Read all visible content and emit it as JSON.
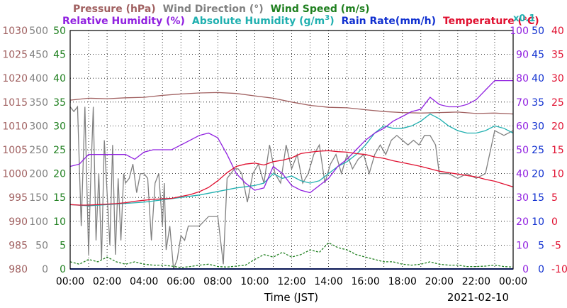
{
  "chart_data": {
    "type": "line",
    "date": "2021-02-10",
    "xlabel": "Time (JST)",
    "x_ticks": [
      "00:00",
      "02:00",
      "04:00",
      "06:00",
      "08:00",
      "10:00",
      "12:00",
      "14:00",
      "16:00",
      "18:00",
      "20:00",
      "22:00",
      "00:00"
    ],
    "xlim": [
      0,
      24
    ],
    "grid": true,
    "legend_row1": [
      {
        "label": "Pressure (hPa)",
        "color": "#a06060"
      },
      {
        "label": "Wind Direction (°)",
        "color": "#808080"
      },
      {
        "label": "Wind Speed (m/s)",
        "color": "#208020"
      }
    ],
    "legend_row2": [
      {
        "label": "Relative Humidity (%)",
        "color": "#9020e0"
      },
      {
        "label": "Absolute Humidity (g/m",
        "sup": "3",
        "close": ")",
        "color": "#20b0b0"
      },
      {
        "label": "Rain Rate(mm/h)",
        "color": "#1030d0"
      },
      {
        "label": "Temperature (°C)",
        "color": "#e01030"
      }
    ],
    "abs_humidity_scale_note": "x0.1",
    "axes": {
      "pressure": {
        "min": 980,
        "max": 1030,
        "ticks": [
          "1030",
          "1025",
          "1020",
          "1015",
          "1010",
          "1005",
          "1000",
          "995",
          "990",
          "985",
          "980"
        ],
        "color": "#a06060"
      },
      "wind_direction": {
        "min": 0,
        "max": 500,
        "ticks": [
          "500",
          "450",
          "400",
          "350",
          "300",
          "250",
          "200",
          "150",
          "100",
          "50",
          "0"
        ],
        "color": "#808080"
      },
      "wind_speed": {
        "min": 0,
        "max": 50,
        "ticks": [
          "50",
          "45",
          "40",
          "35",
          "30",
          "25",
          "20",
          "15",
          "10",
          "5",
          "0"
        ],
        "color": "#208020"
      },
      "relative_humidity": {
        "min": 0,
        "max": 100,
        "ticks": [
          "100",
          "90",
          "80",
          "70",
          "60",
          "50",
          "40",
          "30",
          "20",
          "10",
          "0"
        ],
        "color": "#9020e0"
      },
      "rain_rate": {
        "min": 0,
        "max": 50,
        "ticks": [
          "50",
          "45",
          "40",
          "35",
          "30",
          "25",
          "20",
          "15",
          "10",
          "5",
          "0"
        ],
        "color": "#1030d0"
      },
      "temperature": {
        "min": -10,
        "max": 40,
        "ticks": [
          "40",
          "35",
          "30",
          "25",
          "20",
          "15",
          "10",
          "5",
          "0",
          "-5",
          "-10"
        ],
        "color": "#e01030"
      }
    },
    "series": [
      {
        "name": "Pressure (hPa)",
        "axis": "pressure",
        "color": "#a06060",
        "x": [
          0,
          1,
          2,
          3,
          4,
          5,
          6,
          7,
          8,
          9,
          10,
          11,
          12,
          13,
          14,
          15,
          16,
          17,
          18,
          19,
          20,
          21,
          22,
          23,
          24
        ],
        "y": [
          1015.4,
          1015.8,
          1015.7,
          1015.9,
          1016.0,
          1016.4,
          1016.7,
          1016.9,
          1017.0,
          1016.8,
          1016.3,
          1015.8,
          1015.0,
          1014.3,
          1013.9,
          1013.8,
          1013.4,
          1013.0,
          1012.8,
          1012.7,
          1012.8,
          1012.9,
          1012.6,
          1012.7,
          1012.5
        ]
      },
      {
        "name": "Relative Humidity (%)",
        "axis": "relative_humidity",
        "color": "#9020e0",
        "x": [
          0,
          0.5,
          1,
          1.5,
          2,
          2.5,
          3,
          3.5,
          4,
          4.5,
          5,
          5.5,
          6,
          6.5,
          7,
          7.5,
          8,
          8.5,
          9,
          9.5,
          10,
          10.5,
          11,
          11.5,
          12,
          12.5,
          13,
          13.5,
          14,
          14.5,
          15,
          15.5,
          16,
          16.5,
          17,
          17.5,
          18,
          18.5,
          19,
          19.5,
          20,
          20.5,
          21,
          21.5,
          22,
          22.5,
          23,
          23.5,
          24
        ],
        "y": [
          43,
          44,
          48,
          48,
          48,
          48,
          48,
          46,
          49,
          50,
          50,
          50,
          52,
          54,
          56,
          57,
          55,
          48,
          40,
          36,
          33,
          34,
          43,
          40,
          35,
          33,
          32,
          35,
          38,
          43,
          46,
          50,
          54,
          57,
          59,
          62,
          64,
          66,
          67,
          72,
          69,
          68,
          68,
          69,
          71,
          75,
          79,
          79,
          79
        ]
      },
      {
        "name": "Absolute Humidity (g/m3)",
        "axis": "relative_humidity",
        "color": "#20b0b0",
        "x": [
          0,
          1,
          2,
          3,
          4,
          5,
          6,
          7,
          8,
          9,
          10,
          10.5,
          11,
          11.5,
          12,
          12.5,
          13,
          13.5,
          14,
          14.5,
          15,
          15.5,
          16,
          16.5,
          17,
          17.5,
          18,
          18.5,
          19,
          19.5,
          20,
          20.5,
          21,
          21.5,
          22,
          22.5,
          23,
          23.5,
          24
        ],
        "y": [
          27,
          26.5,
          27,
          27.5,
          28,
          29,
          30,
          31,
          32.5,
          34,
          35,
          36,
          40,
          38,
          39,
          37,
          36,
          37,
          40,
          43,
          45,
          48,
          52,
          57,
          60,
          59,
          59,
          60,
          62,
          65,
          63,
          60,
          58,
          57,
          57,
          58,
          60,
          59,
          57
        ]
      },
      {
        "name": "Temperature (°C)",
        "axis": "temperature",
        "color": "#e01030",
        "x": [
          0,
          0.5,
          1,
          1.5,
          2,
          2.5,
          3,
          3.5,
          4,
          4.5,
          5,
          5.5,
          6,
          6.5,
          7,
          7.5,
          8,
          8.5,
          9,
          9.5,
          10,
          10.5,
          11,
          11.5,
          12,
          12.5,
          13,
          13.5,
          14,
          14.5,
          15,
          15.5,
          16,
          16.5,
          17,
          17.5,
          18,
          18.5,
          19,
          19.5,
          20,
          20.5,
          21,
          21.5,
          22,
          22.5,
          23,
          23.5,
          24
        ],
        "y": [
          3.5,
          3.4,
          3.4,
          3.5,
          3.6,
          3.7,
          3.9,
          4.2,
          4.4,
          4.6,
          4.7,
          4.8,
          5.2,
          5.6,
          6.2,
          7.1,
          8.5,
          10.2,
          11.5,
          12.0,
          12.2,
          11.8,
          12.5,
          12.8,
          13.3,
          14.2,
          14.5,
          14.7,
          14.8,
          14.6,
          14.5,
          14.2,
          14.0,
          13.5,
          13.2,
          12.7,
          12.3,
          11.9,
          11.5,
          11.0,
          10.5,
          10.2,
          9.9,
          9.6,
          9.3,
          8.8,
          8.4,
          7.8,
          7.2
        ]
      },
      {
        "name": "Wind Direction (°)",
        "axis": "wind_direction",
        "color": "#808080",
        "x": [
          0,
          0.2,
          0.4,
          0.6,
          0.8,
          1.0,
          1.1,
          1.25,
          1.4,
          1.55,
          1.7,
          1.85,
          2.0,
          2.15,
          2.3,
          2.45,
          2.6,
          2.75,
          2.9,
          3.0,
          3.2,
          3.4,
          3.6,
          3.8,
          4.0,
          4.2,
          4.4,
          4.6,
          4.8,
          5.0,
          5.1,
          5.2,
          5.4,
          5.6,
          5.8,
          6.0,
          6.2,
          6.4,
          6.6,
          6.8,
          7.0,
          7.5,
          8.0,
          8.3,
          8.5,
          8.7,
          8.9,
          9.1,
          9.3,
          9.6,
          9.9,
          10.2,
          10.5,
          10.8,
          11.1,
          11.4,
          11.7,
          12.0,
          12.3,
          12.6,
          12.9,
          13.2,
          13.5,
          13.8,
          14.1,
          14.4,
          14.7,
          15.0,
          15.3,
          15.6,
          15.9,
          16.2,
          16.5,
          16.8,
          17.1,
          17.4,
          17.7,
          18.0,
          18.3,
          18.6,
          18.9,
          19.2,
          19.5,
          19.8,
          20.0,
          20.5,
          21.0,
          21.5,
          22.0,
          22.5,
          23.0,
          23.5,
          24.0
        ],
        "y": [
          340,
          330,
          340,
          90,
          340,
          30,
          170,
          340,
          60,
          200,
          20,
          270,
          160,
          50,
          260,
          30,
          190,
          60,
          200,
          180,
          190,
          220,
          160,
          200,
          200,
          190,
          60,
          180,
          200,
          90,
          180,
          40,
          90,
          0,
          20,
          70,
          60,
          90,
          90,
          90,
          90,
          110,
          110,
          10,
          190,
          200,
          210,
          210,
          200,
          140,
          200,
          220,
          180,
          260,
          200,
          180,
          260,
          210,
          240,
          180,
          200,
          240,
          260,
          180,
          220,
          240,
          200,
          240,
          210,
          230,
          240,
          200,
          240,
          260,
          240,
          270,
          280,
          270,
          260,
          270,
          260,
          280,
          280,
          260,
          200,
          200,
          190,
          200,
          190,
          200,
          290,
          280,
          290
        ]
      },
      {
        "name": "Wind Speed (m/s)",
        "axis": "wind_speed",
        "color": "#208020",
        "x": [
          0,
          0.5,
          1,
          1.5,
          2,
          2.5,
          3,
          3.5,
          4,
          4.5,
          5,
          5.5,
          6,
          6.5,
          7,
          7.5,
          8,
          8.5,
          9,
          9.5,
          10,
          10.5,
          11,
          11.5,
          12,
          12.5,
          13,
          13.5,
          14,
          14.5,
          15,
          15.5,
          16,
          16.5,
          17,
          17.5,
          18,
          18.5,
          19,
          19.5,
          20,
          20.5,
          21,
          21.5,
          22,
          22.5,
          23,
          23.5,
          24
        ],
        "y": [
          1.5,
          1.0,
          2.0,
          1.5,
          2.5,
          1.5,
          1.0,
          1.5,
          1.0,
          0.8,
          0.8,
          0.6,
          0.3,
          0.5,
          0.8,
          1.0,
          0.5,
          0.4,
          0.6,
          0.8,
          2.0,
          3.0,
          2.5,
          3.5,
          2.5,
          3.0,
          4.0,
          3.5,
          5.5,
          4.5,
          4.0,
          3.0,
          2.5,
          2.0,
          1.5,
          1.5,
          1.0,
          0.8,
          1.0,
          1.5,
          1.0,
          0.8,
          0.8,
          0.5,
          0.5,
          0.6,
          0.8,
          0.5,
          0.4
        ]
      },
      {
        "name": "Rain Rate(mm/h)",
        "axis": "rain_rate",
        "color": "#1030d0",
        "x": [
          0,
          24
        ],
        "y": [
          0,
          0
        ]
      }
    ]
  }
}
